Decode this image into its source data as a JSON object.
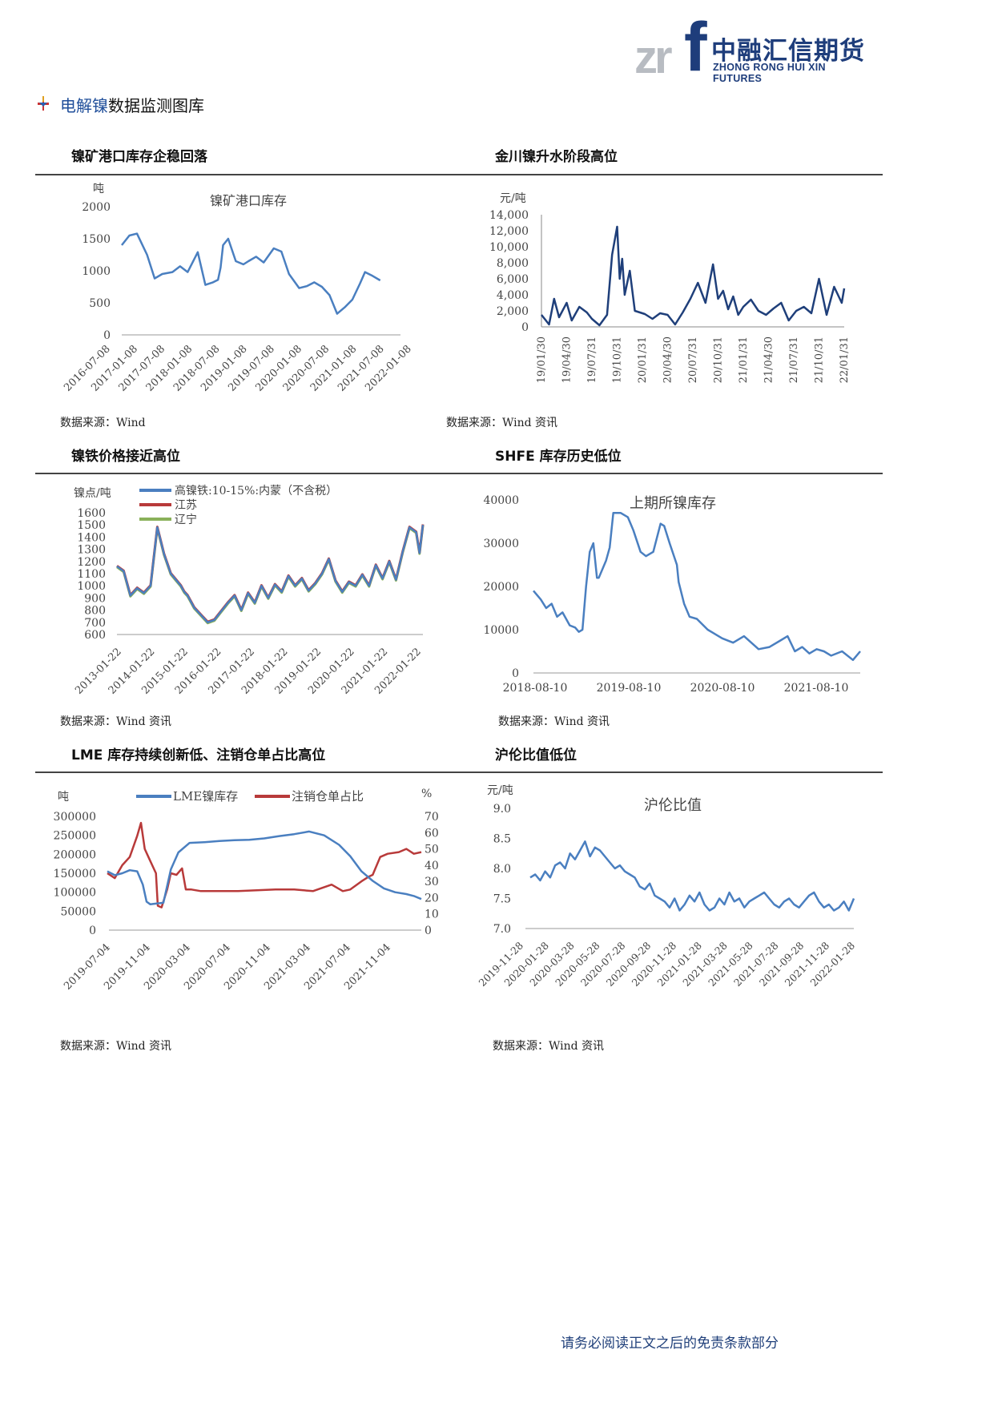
{
  "logo": {
    "mark": "zr",
    "mark_f": "f",
    "name_cn": "中融汇信期货",
    "name_en": "ZHONG RONG HUI XIN FUTURES"
  },
  "section": {
    "highlight": "电解镍",
    "rest": "数据监测图库"
  },
  "footer": "请务必阅读正文之后的免责条款部分",
  "colors": {
    "primary_blue": "#4a7fc0",
    "dark_blue": "#1f3f7a",
    "red": "#b83a3a",
    "green": "#8ab15a"
  },
  "charts": [
    {
      "title": "镍矿港口库存企稳回落",
      "source": "数据来源：Wind"
    },
    {
      "title": "金川镍升水阶段高位",
      "source": "数据来源：Wind 资讯"
    },
    {
      "title": "镍铁价格接近高位",
      "source": "数据来源：Wind 资讯"
    },
    {
      "title": "SHFE 库存历史低位",
      "source": "数据来源：Wind 资讯"
    },
    {
      "title": "LME 库存持续创新低、注销仓单占比高位",
      "source": "数据来源：Wind 资讯"
    },
    {
      "title": "沪伦比值低位",
      "source": "数据来源：Wind 资讯"
    }
  ],
  "chart_data": [
    {
      "type": "line",
      "title": "镍矿港口库存",
      "ylabel": "吨",
      "ylim": [
        0,
        2000
      ],
      "yticks": [
        "2000",
        "1500",
        "1000",
        "500",
        "0"
      ],
      "xticks": [
        "2016-07-08",
        "2017-01-08",
        "2017-07-08",
        "2018-01-08",
        "2018-07-08",
        "2019-01-08",
        "2019-07-08",
        "2020-01-08",
        "2020-07-08",
        "2021-01-08",
        "2021-07-08",
        "2022-01-08"
      ],
      "x": [
        0.0,
        0.3,
        0.6,
        1.0,
        1.3,
        1.6,
        2.0,
        2.3,
        2.6,
        3.0,
        3.3,
        3.6,
        3.8,
        3.9,
        4.0,
        4.2,
        4.5,
        4.8,
        5.0,
        5.3,
        5.6,
        6.0,
        6.3,
        6.6,
        7.0,
        7.3,
        7.6,
        7.9,
        8.2,
        8.5,
        8.8,
        9.1,
        9.4,
        9.6,
        9.9,
        10.2,
        10.5,
        10.8,
        11.0
      ],
      "values": [
        1400,
        1550,
        1580,
        1250,
        880,
        950,
        980,
        1070,
        980,
        1290,
        780,
        820,
        860,
        1050,
        1400,
        1500,
        1150,
        1100,
        1150,
        1220,
        1130,
        1350,
        1300,
        950,
        730,
        760,
        820,
        750,
        620,
        330,
        430,
        550,
        800,
        980,
        920,
        850,
        0,
        0,
        0
      ],
      "n_valid": 36,
      "series_name": "镍矿港口库存"
    },
    {
      "type": "line",
      "ylabel": "元/吨",
      "ylim": [
        0,
        14000
      ],
      "yticks": [
        "14,000",
        "12,000",
        "10,000",
        "8,000",
        "6,000",
        "4,000",
        "2,000",
        "0"
      ],
      "xticks": [
        "19/01/30",
        "19/04/30",
        "19/07/31",
        "19/10/31",
        "20/01/31",
        "20/04/30",
        "20/07/31",
        "20/10/31",
        "21/01/31",
        "21/04/30",
        "21/07/31",
        "21/10/31",
        "22/01/31"
      ],
      "x": [
        0,
        0.3,
        0.5,
        0.7,
        1.0,
        1.2,
        1.5,
        1.8,
        2.0,
        2.3,
        2.6,
        2.8,
        3.0,
        3.1,
        3.2,
        3.3,
        3.5,
        3.7,
        3.9,
        4.1,
        4.4,
        4.7,
        5.0,
        5.3,
        5.6,
        5.9,
        6.2,
        6.5,
        6.8,
        7.0,
        7.2,
        7.4,
        7.6,
        7.8,
        8.0,
        8.3,
        8.6,
        8.9,
        9.2,
        9.5,
        9.8,
        10.1,
        10.4,
        10.7,
        11.0,
        11.3,
        11.6,
        11.9,
        12.0
      ],
      "values": [
        1500,
        300,
        3500,
        1200,
        3000,
        800,
        2500,
        1800,
        1000,
        200,
        1500,
        9000,
        12500,
        6000,
        8500,
        4000,
        7000,
        2000,
        1800,
        1600,
        1000,
        1700,
        1500,
        300,
        1800,
        3500,
        5500,
        3000,
        7800,
        3500,
        4500,
        2200,
        3800,
        1500,
        2500,
        3400,
        2000,
        1500,
        2300,
        3000,
        800,
        2000,
        2500,
        1700,
        6000,
        1500,
        5000,
        3000,
        4800
      ],
      "series_name": ""
    },
    {
      "type": "line",
      "ylabel": "镍点/吨",
      "ylim": [
        600,
        1600
      ],
      "yticks": [
        "1600",
        "1500",
        "1400",
        "1300",
        "1200",
        "1100",
        "1000",
        "900",
        "800",
        "700",
        "600"
      ],
      "xticks": [
        "2013-01-22",
        "2014-01-22",
        "2015-01-22",
        "2016-01-22",
        "2017-01-22",
        "2018-01-22",
        "2019-01-22",
        "2020-01-22",
        "2021-01-22",
        "2022-01-22"
      ],
      "legend": [
        "高镍铁:10-15%:内蒙（不含税）",
        "江苏",
        "辽宁"
      ],
      "x": [
        0,
        0.2,
        0.4,
        0.6,
        0.8,
        1.0,
        1.2,
        1.4,
        1.6,
        1.75,
        1.9,
        2.0,
        2.1,
        2.3,
        2.5,
        2.7,
        2.9,
        3.1,
        3.3,
        3.5,
        3.7,
        3.9,
        4.1,
        4.3,
        4.5,
        4.7,
        4.9,
        5.1,
        5.3,
        5.5,
        5.7,
        5.9,
        6.1,
        6.3,
        6.5,
        6.7,
        6.9,
        7.1,
        7.3,
        7.5,
        7.7,
        7.9,
        8.1,
        8.3,
        8.5,
        8.7,
        8.9,
        9.0,
        9.1
      ],
      "values": [
        1160,
        1120,
        920,
        980,
        940,
        1000,
        1480,
        1260,
        1100,
        1050,
        1000,
        950,
        920,
        820,
        760,
        700,
        720,
        790,
        860,
        920,
        800,
        940,
        860,
        1000,
        900,
        1010,
        950,
        1080,
        1000,
        1060,
        960,
        1020,
        1100,
        1220,
        1040,
        950,
        1030,
        1000,
        1090,
        1000,
        1170,
        1060,
        1200,
        1050,
        1280,
        1480,
        1440,
        1270,
        1500
      ],
      "series_name": "高镍铁:10-15%:内蒙（不含税）"
    },
    {
      "type": "line",
      "title": "上期所镍库存",
      "ylim": [
        0,
        40000
      ],
      "yticks": [
        "40000",
        "30000",
        "20000",
        "10000",
        "0"
      ],
      "xticks": [
        "2018-08-10",
        "2019-08-10",
        "2020-08-10",
        "2021-08-10"
      ],
      "x": [
        0,
        0.2,
        0.35,
        0.5,
        0.65,
        0.8,
        1.0,
        1.15,
        1.25,
        1.35,
        1.45,
        1.55,
        1.65,
        1.75,
        1.8,
        2.0,
        2.1,
        2.2,
        2.4,
        2.6,
        2.75,
        2.95,
        3.1,
        3.3,
        3.5,
        3.6,
        3.75,
        3.95,
        4.0,
        4.15,
        4.3,
        4.5,
        4.8,
        5.0,
        5.2,
        5.5,
        5.8,
        6.2,
        6.5,
        6.8,
        7.0,
        7.2,
        7.4,
        7.6,
        7.8,
        8.0,
        8.2,
        8.5,
        8.8,
        9.0
      ],
      "values": [
        19000,
        17000,
        15000,
        16000,
        13000,
        14000,
        11000,
        10500,
        9500,
        10000,
        20000,
        28000,
        30000,
        22000,
        22000,
        26000,
        29000,
        37000,
        37000,
        36000,
        33000,
        28000,
        27000,
        28000,
        34500,
        34000,
        30000,
        25000,
        21000,
        16000,
        13000,
        12500,
        10000,
        9000,
        8000,
        7000,
        8500,
        5500,
        6000,
        7500,
        8500,
        5000,
        6000,
        4500,
        5500,
        5000,
        4000,
        5000,
        3000,
        5000
      ],
      "series_name": "上期所镍库存"
    },
    {
      "type": "line",
      "ylabel": "吨",
      "y2label": "%",
      "ylim": [
        0,
        300000
      ],
      "y2lim": [
        0,
        70
      ],
      "yticks": [
        "300000",
        "250000",
        "200000",
        "150000",
        "100000",
        "50000",
        "0"
      ],
      "y2ticks": [
        "70",
        "60",
        "50",
        "40",
        "30",
        "20",
        "10",
        "0"
      ],
      "xticks": [
        "2019-07-04",
        "2019-11-04",
        "2020-03-04",
        "2020-07-04",
        "2020-11-04",
        "2021-03-04",
        "2021-07-04",
        "2021-11-04"
      ],
      "series": [
        {
          "name": "LME镍库存",
          "x": [
            0,
            0.2,
            0.4,
            0.6,
            0.8,
            0.95,
            1.05,
            1.15,
            1.3,
            1.5,
            1.7,
            1.9,
            2.2,
            2.6,
            3.0,
            3.4,
            3.8,
            4.2,
            4.6,
            5.0,
            5.4,
            5.8,
            6.2,
            6.5,
            6.8,
            7.1,
            7.4,
            7.7,
            8.0,
            8.2,
            8.4
          ],
          "values": [
            155000,
            145000,
            150000,
            158000,
            155000,
            120000,
            75000,
            68000,
            70000,
            72000,
            160000,
            205000,
            230000,
            232000,
            235000,
            237000,
            238000,
            242000,
            248000,
            253000,
            260000,
            250000,
            225000,
            195000,
            155000,
            130000,
            110000,
            100000,
            95000,
            90000,
            82000
          ]
        },
        {
          "name": "注销仓单占比",
          "x": [
            0,
            0.2,
            0.4,
            0.6,
            0.8,
            0.9,
            1.0,
            1.1,
            1.2,
            1.3,
            1.35,
            1.45,
            1.6,
            1.7,
            1.85,
            2.0,
            2.1,
            2.25,
            2.5,
            3.0,
            3.5,
            4.0,
            4.5,
            5.0,
            5.5,
            6.0,
            6.3,
            6.5,
            6.8,
            7.0,
            7.1,
            7.3,
            7.5,
            7.8,
            8.0,
            8.2,
            8.4
          ],
          "values": [
            35,
            32,
            40,
            45,
            58,
            66,
            50,
            45,
            40,
            35,
            15,
            14,
            25,
            35,
            34,
            38,
            25,
            25,
            24,
            24,
            24,
            24.5,
            25,
            25,
            24,
            28,
            24,
            25,
            30,
            33,
            34,
            45,
            47,
            48,
            50,
            47,
            48
          ]
        }
      ]
    },
    {
      "type": "line",
      "title": "沪伦比值",
      "ylabel": "元/吨",
      "ylim": [
        7.0,
        9.0
      ],
      "yticks": [
        "9.0",
        "8.5",
        "8.0",
        "7.5",
        "7.0"
      ],
      "xticks": [
        "2019-11-28",
        "2020-01-28",
        "2020-03-28",
        "2020-05-28",
        "2020-07-28",
        "2020-09-28",
        "2020-11-28",
        "2021-01-28",
        "2021-03-28",
        "2021-05-28",
        "2021-07-28",
        "2021-09-28",
        "2021-11-28",
        "2022-01-28"
      ],
      "x": [
        0,
        0.2,
        0.4,
        0.6,
        0.8,
        1.0,
        1.2,
        1.4,
        1.6,
        1.8,
        2.0,
        2.2,
        2.4,
        2.6,
        2.8,
        3.0,
        3.2,
        3.4,
        3.6,
        3.8,
        4.0,
        4.2,
        4.4,
        4.6,
        4.8,
        5.0,
        5.2,
        5.4,
        5.6,
        5.8,
        6.0,
        6.2,
        6.4,
        6.6,
        6.8,
        7.0,
        7.2,
        7.4,
        7.6,
        7.8,
        8.0,
        8.2,
        8.4,
        8.6,
        8.8,
        9.0,
        9.2,
        9.4,
        9.6,
        9.8,
        10.0,
        10.2,
        10.4,
        10.6,
        10.8,
        11.0,
        11.2,
        11.4,
        11.6,
        11.8,
        12.0,
        12.2,
        12.4,
        12.6,
        12.8,
        13.0
      ],
      "values": [
        7.85,
        7.9,
        7.8,
        7.95,
        7.85,
        8.05,
        8.1,
        8.0,
        8.25,
        8.15,
        8.3,
        8.45,
        8.2,
        8.35,
        8.3,
        8.2,
        8.1,
        8.0,
        8.05,
        7.95,
        7.9,
        7.85,
        7.7,
        7.65,
        7.75,
        7.55,
        7.5,
        7.45,
        7.35,
        7.5,
        7.3,
        7.4,
        7.55,
        7.45,
        7.6,
        7.4,
        7.3,
        7.35,
        7.5,
        7.4,
        7.6,
        7.45,
        7.5,
        7.35,
        7.45,
        7.5,
        7.55,
        7.6,
        7.5,
        7.4,
        7.35,
        7.45,
        7.5,
        7.4,
        7.35,
        7.45,
        7.55,
        7.6,
        7.45,
        7.35,
        7.4,
        7.3,
        7.35,
        7.45,
        7.3,
        7.5
      ],
      "series_name": "沪伦比值"
    }
  ]
}
